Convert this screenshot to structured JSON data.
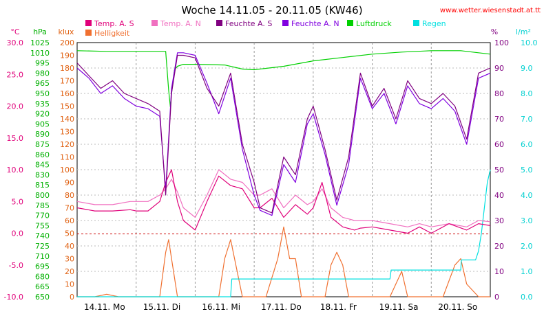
{
  "chart_data": {
    "type": "line",
    "title": "Woche 14.11.05 - 20.11.05 (KW46)",
    "source": "www.wetter.wiesenstadt.at.tt",
    "days": [
      "14.11. Mo",
      "15.11. Di",
      "16.11. Mi",
      "17.11. Do",
      "18.11. Fr",
      "19.11. Sa",
      "20.11. So"
    ],
    "axes": {
      "temp": {
        "unit": "°C",
        "color": "#e0007a",
        "ticks": [
          "30.0",
          "25.0",
          "20.0",
          "15.0",
          "10.0",
          "5.0",
          "0.0",
          "-5.0",
          "-10.0"
        ],
        "range": [
          -10,
          30
        ]
      },
      "press": {
        "unit": "hPa",
        "color": "#00b000",
        "ticks": [
          "1025",
          "1010",
          "995",
          "980",
          "965",
          "950",
          "935",
          "920",
          "905",
          "890",
          "875",
          "860",
          "845",
          "830",
          "815",
          "800",
          "785",
          "770",
          "755",
          "740",
          "725",
          "710",
          "695",
          "680",
          "665",
          "650"
        ],
        "range": [
          650,
          1025
        ]
      },
      "lux": {
        "unit": "klux",
        "color": "#e06010",
        "ticks": [
          "200",
          "190",
          "180",
          "170",
          "160",
          "150",
          "140",
          "130",
          "120",
          "110",
          "100",
          "90",
          "80",
          "70",
          "60",
          "50",
          "40",
          "30",
          "20",
          "10",
          "0"
        ],
        "range": [
          0,
          200
        ]
      },
      "hum": {
        "unit": "%",
        "color": "#800080",
        "ticks": [
          "100",
          "90",
          "80",
          "70",
          "60",
          "50",
          "40",
          "30",
          "20",
          "10",
          "0"
        ],
        "range": [
          0,
          100
        ]
      },
      "rain": {
        "unit": "l/m²",
        "color": "#00d0d0",
        "ticks": [
          "10.0",
          "9.0",
          "8.0",
          "7.0",
          "6.0",
          "5.0",
          "4.0",
          "3.0",
          "2.0",
          "1.0",
          "0.0"
        ],
        "range": [
          0,
          10
        ]
      }
    },
    "legend": [
      {
        "name": "Temp. A. S",
        "color": "#e0007a"
      },
      {
        "name": "Temp. A. N",
        "color": "#f070c0"
      },
      {
        "name": "Feuchte A. S",
        "color": "#800080"
      },
      {
        "name": "Feuchte A. N",
        "color": "#8000e0"
      },
      {
        "name": "Luftdruck",
        "color": "#00d000"
      },
      {
        "name": "Regen",
        "color": "#00e0e0"
      },
      {
        "name": "Helligkeit",
        "color": "#f07030"
      }
    ],
    "series": [
      {
        "name": "Temp. A. S",
        "axis": "temp",
        "x": [
          0,
          0.3,
          0.6,
          0.9,
          1.0,
          1.2,
          1.4,
          1.5,
          1.6,
          1.7,
          1.8,
          2.0,
          2.2,
          2.4,
          2.6,
          2.8,
          3.0,
          3.1,
          3.3,
          3.5,
          3.7,
          3.9,
          4.0,
          4.15,
          4.3,
          4.5,
          4.7,
          4.8,
          5.0,
          5.3,
          5.6,
          5.8,
          6.0,
          6.3,
          6.6,
          6.8,
          7.0
        ],
        "y": [
          4,
          3.5,
          3.5,
          3.7,
          3.5,
          3.5,
          5,
          8,
          10,
          5,
          2,
          0.5,
          5,
          9,
          7.5,
          7,
          4,
          4,
          5.5,
          2.5,
          4.5,
          3,
          4,
          8,
          2.5,
          1,
          0.5,
          0.8,
          1,
          0.5,
          0,
          1,
          0,
          1.5,
          0.5,
          1.5,
          1.2
        ]
      },
      {
        "name": "Temp. A. N",
        "axis": "temp",
        "x": [
          0,
          0.3,
          0.6,
          0.9,
          1.0,
          1.2,
          1.4,
          1.5,
          1.6,
          1.7,
          1.8,
          2.0,
          2.2,
          2.4,
          2.6,
          2.8,
          3.0,
          3.1,
          3.3,
          3.5,
          3.7,
          3.9,
          4.0,
          4.15,
          4.3,
          4.5,
          4.7,
          4.8,
          5.0,
          5.3,
          5.6,
          5.8,
          6.0,
          6.3,
          6.6,
          6.8,
          7.0
        ],
        "y": [
          5,
          4.5,
          4.5,
          5,
          5,
          5,
          6,
          7,
          8.5,
          6.5,
          4,
          2.5,
          6,
          10,
          8.5,
          8,
          6,
          6,
          7,
          4,
          6,
          4.5,
          5,
          7,
          4,
          2.5,
          2,
          2,
          2,
          1.5,
          1,
          1.5,
          1,
          1.5,
          1,
          2,
          1.8
        ]
      },
      {
        "name": "Feuchte A. S",
        "axis": "hum",
        "x": [
          0,
          0.2,
          0.4,
          0.6,
          0.8,
          1.0,
          1.2,
          1.4,
          1.5,
          1.6,
          1.7,
          1.8,
          2.0,
          2.2,
          2.4,
          2.6,
          2.8,
          3.0,
          3.1,
          3.3,
          3.5,
          3.7,
          3.9,
          4.0,
          4.2,
          4.4,
          4.6,
          4.8,
          5.0,
          5.2,
          5.4,
          5.6,
          5.8,
          6.0,
          6.2,
          6.4,
          6.6,
          6.8,
          7.0
        ],
        "y": [
          92,
          87,
          82,
          85,
          80,
          78,
          76,
          73,
          40,
          80,
          95,
          95,
          94,
          82,
          75,
          88,
          60,
          45,
          35,
          33,
          55,
          48,
          70,
          75,
          58,
          38,
          55,
          88,
          75,
          82,
          70,
          85,
          78,
          76,
          80,
          75,
          62,
          88,
          90
        ]
      },
      {
        "name": "Feuchte A. N",
        "axis": "hum",
        "x": [
          0,
          0.2,
          0.4,
          0.6,
          0.8,
          1.0,
          1.2,
          1.4,
          1.5,
          1.6,
          1.7,
          1.8,
          2.0,
          2.2,
          2.4,
          2.6,
          2.8,
          3.0,
          3.1,
          3.3,
          3.5,
          3.7,
          3.9,
          4.0,
          4.2,
          4.4,
          4.6,
          4.8,
          5.0,
          5.2,
          5.4,
          5.6,
          5.8,
          6.0,
          6.2,
          6.4,
          6.6,
          6.8,
          7.0
        ],
        "y": [
          90,
          86,
          80,
          83,
          78,
          75,
          74,
          71,
          42,
          82,
          96,
          96,
          95,
          84,
          72,
          86,
          58,
          40,
          34,
          32,
          52,
          45,
          68,
          72,
          56,
          36,
          52,
          86,
          74,
          80,
          68,
          83,
          76,
          74,
          78,
          73,
          60,
          86,
          88
        ]
      },
      {
        "name": "Luftdruck",
        "axis": "press",
        "x": [
          0,
          0.5,
          1.0,
          1.5,
          1.55,
          1.58,
          1.6,
          1.65,
          1.7,
          1.8,
          2.0,
          2.5,
          2.8,
          3.0,
          3.5,
          4.0,
          4.5,
          5.0,
          5.5,
          6.0,
          6.5,
          7.0
        ],
        "y": [
          1013,
          1012,
          1012,
          1012,
          955,
          930,
          950,
          985,
          990,
          993,
          993,
          992,
          986,
          985,
          990,
          998,
          1003,
          1008,
          1011,
          1013,
          1013,
          1008
        ]
      },
      {
        "name": "Regen",
        "axis": "rain",
        "x": [
          0,
          2.6,
          2.62,
          2.75,
          3.0,
          4.0,
          5.0,
          5.3,
          5.32,
          6.0,
          6.3,
          6.5,
          6.51,
          6.75,
          6.8,
          6.85,
          6.9,
          6.95,
          7.0
        ],
        "y": [
          0,
          0,
          0.7,
          0.7,
          0.7,
          0.7,
          0.7,
          0.7,
          1.05,
          1.05,
          1.05,
          1.05,
          1.45,
          1.45,
          1.8,
          2.5,
          3.5,
          4.5,
          5.0
        ]
      },
      {
        "name": "Helligkeit",
        "axis": "lux",
        "x": [
          0,
          0.3,
          0.5,
          0.7,
          1.0,
          1.2,
          1.4,
          1.5,
          1.55,
          1.6,
          1.7,
          1.9,
          2.2,
          2.4,
          2.5,
          2.6,
          2.8,
          3.2,
          3.4,
          3.5,
          3.6,
          3.7,
          3.8,
          4.2,
          4.3,
          4.4,
          4.5,
          4.6,
          4.8,
          5.3,
          5.45,
          5.5,
          5.6,
          5.8,
          6.2,
          6.4,
          6.5,
          6.6,
          6.8,
          7.0
        ],
        "y": [
          0,
          0,
          2,
          0,
          0,
          0,
          0,
          35,
          45,
          30,
          0,
          0,
          0,
          0,
          30,
          45,
          0,
          0,
          30,
          55,
          30,
          30,
          0,
          0,
          25,
          35,
          25,
          0,
          0,
          0,
          15,
          20,
          0,
          0,
          0,
          25,
          30,
          10,
          0,
          0
        ]
      }
    ]
  }
}
